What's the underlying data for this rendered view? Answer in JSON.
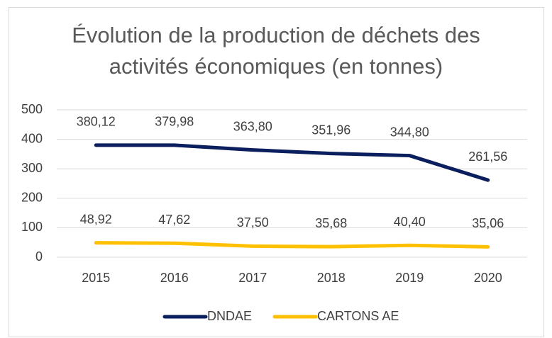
{
  "chart_data": {
    "type": "line",
    "title": "Évolution de la production de déchets des activités économiques (en tonnes)",
    "categories": [
      "2015",
      "2016",
      "2017",
      "2018",
      "2019",
      "2020"
    ],
    "series": [
      {
        "name": "DNDAE",
        "color": "#0b1f5e",
        "values": [
          380.12,
          379.98,
          363.8,
          351.96,
          344.8,
          261.56
        ],
        "value_labels": [
          "380,12",
          "379,98",
          "363,80",
          "351,96",
          "344,80",
          "261,56"
        ]
      },
      {
        "name": "CARTONS AE",
        "color": "#ffc000",
        "values": [
          48.92,
          47.62,
          37.5,
          35.68,
          40.4,
          35.06
        ],
        "value_labels": [
          "48,92",
          "47,62",
          "37,50",
          "35,68",
          "40,40",
          "35,06"
        ]
      }
    ],
    "ylim": [
      0,
      500
    ],
    "yticks": [
      0,
      100,
      200,
      300,
      400,
      500
    ],
    "grid": true,
    "legend": "bottom"
  }
}
